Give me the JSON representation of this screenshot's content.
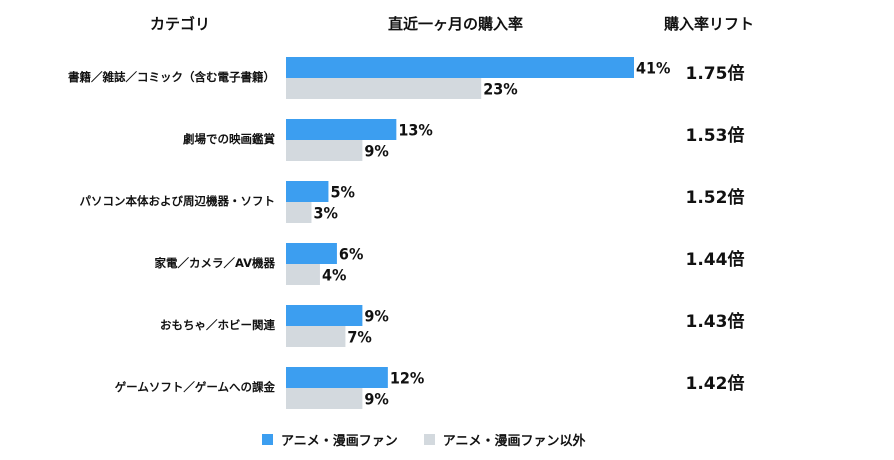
{
  "headers": {
    "category": "カテゴリ",
    "rate": "直近一ヶ月の購入率",
    "lift": "購入率リフト"
  },
  "colors": {
    "fan": "#3c9ef0",
    "nonfan": "#d3d9de"
  },
  "lifts": [
    "1.75倍",
    "1.53倍",
    "1.52倍",
    "1.44倍",
    "1.43倍",
    "1.42倍"
  ],
  "legend": {
    "fan": "アニメ・漫画ファン",
    "nonfan": "アニメ・漫画ファン以外"
  },
  "chart_data": {
    "type": "bar",
    "orientation": "horizontal",
    "title": "直近一ヶ月の購入率",
    "categories": [
      "書籍／雑誌／コミック（含む電子書籍）",
      "劇場での映画鑑賞",
      "パソコン本体および周辺機器・ソフト",
      "家電／カメラ／AV機器",
      "おもちゃ／ホビー関連",
      "ゲームソフト／ゲームへの課金"
    ],
    "series": [
      {
        "name": "アニメ・漫画ファン",
        "values": [
          41,
          13,
          5,
          6,
          9,
          12
        ],
        "labels": [
          "41%",
          "13%",
          "5%",
          "6%",
          "9%",
          "12%"
        ]
      },
      {
        "name": "アニメ・漫画ファン以外",
        "values": [
          23,
          9,
          3,
          4,
          7,
          9
        ],
        "labels": [
          "23%",
          "9%",
          "3%",
          "4%",
          "7%",
          "9%"
        ]
      }
    ],
    "xlim": [
      0,
      41
    ],
    "grid": false,
    "legend_position": "bottom"
  }
}
